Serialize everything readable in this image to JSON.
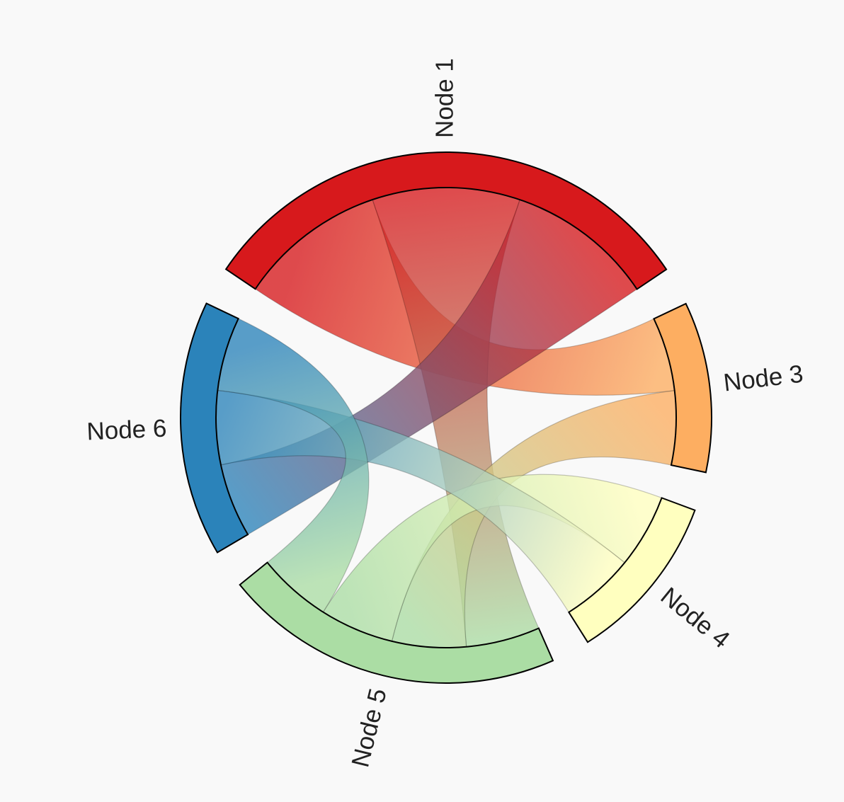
{
  "chart_data": {
    "type": "chord",
    "nodes": [
      {
        "name": "Node 1",
        "color": "#d7191c"
      },
      {
        "name": "Node 3",
        "color": "#fdae61"
      },
      {
        "name": "Node 4",
        "color": "#ffffbf"
      },
      {
        "name": "Node 5",
        "color": "#abdda4"
      },
      {
        "name": "Node 6",
        "color": "#2b83ba"
      }
    ],
    "matrix": [
      [
        0,
        20,
        0,
        20,
        20
      ],
      [
        10,
        0,
        0,
        10,
        0
      ],
      [
        0,
        0,
        0,
        10,
        10
      ],
      [
        10,
        10,
        10,
        0,
        10
      ],
      [
        10,
        0,
        10,
        10,
        0
      ]
    ]
  }
}
